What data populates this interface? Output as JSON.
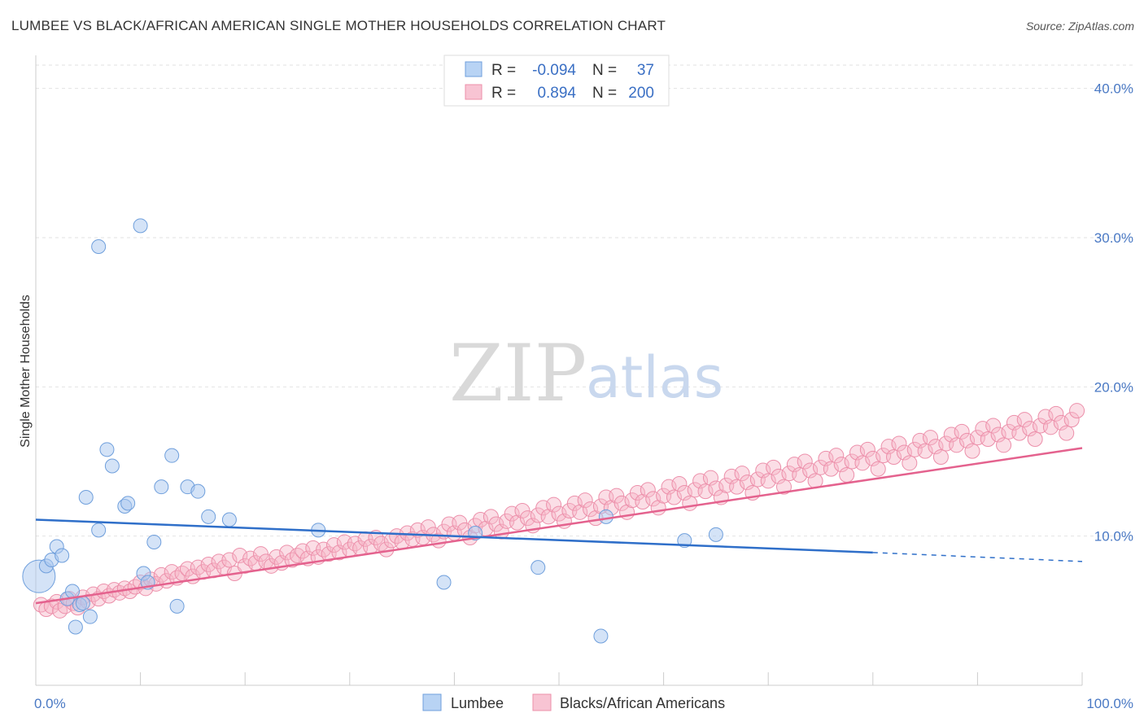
{
  "title": "LUMBEE VS BLACK/AFRICAN AMERICAN SINGLE MOTHER HOUSEHOLDS CORRELATION CHART",
  "source": "Source: ZipAtlas.com",
  "watermark": {
    "zip": "ZIP",
    "atlas": "atlas"
  },
  "chart_data": {
    "type": "scatter",
    "xlabel": "",
    "ylabel": "Single Mother Households",
    "xlim": [
      0,
      100
    ],
    "ylim": [
      0,
      42
    ],
    "x_tick_labels": [
      {
        "value": 0,
        "label": "0.0%"
      },
      {
        "value": 100,
        "label": "100.0%"
      }
    ],
    "y_tick_labels": [
      {
        "value": 10,
        "label": "10.0%"
      },
      {
        "value": 20,
        "label": "20.0%"
      },
      {
        "value": 30,
        "label": "30.0%"
      },
      {
        "value": 40,
        "label": "40.0%"
      }
    ],
    "grid": "horizontal dashed",
    "legend_placement": "top-center",
    "stats": [
      {
        "r_label": "R =",
        "r_value": "-0.094",
        "n_label": "N =",
        "n_value": "37"
      },
      {
        "r_label": "R =",
        "r_value": "0.894",
        "n_label": "N =",
        "n_value": "200"
      }
    ],
    "series": [
      {
        "name": "Lumbee",
        "color": "#a9c8f0",
        "stroke": "#6f9fdc",
        "trend_color": "#2f6fc9",
        "trend": {
          "x0": 0,
          "y0": 11.1,
          "x1": 80,
          "y1": 8.9,
          "dash_to_x": 100,
          "dash_to_y": 8.3
        },
        "points": [
          [
            0.3,
            7.3
          ],
          [
            1.0,
            8.0
          ],
          [
            1.5,
            8.4
          ],
          [
            2.0,
            9.3
          ],
          [
            2.5,
            8.7
          ],
          [
            3.0,
            5.8
          ],
          [
            3.5,
            6.3
          ],
          [
            3.8,
            3.9
          ],
          [
            4.2,
            5.4
          ],
          [
            4.5,
            5.5
          ],
          [
            4.8,
            12.6
          ],
          [
            5.2,
            4.6
          ],
          [
            6.0,
            29.4
          ],
          [
            6.0,
            10.4
          ],
          [
            6.8,
            15.8
          ],
          [
            7.3,
            14.7
          ],
          [
            8.5,
            12.0
          ],
          [
            8.8,
            12.2
          ],
          [
            10.0,
            30.8
          ],
          [
            10.3,
            7.5
          ],
          [
            10.7,
            6.9
          ],
          [
            11.3,
            9.6
          ],
          [
            12.0,
            13.3
          ],
          [
            13.0,
            15.4
          ],
          [
            13.5,
            5.3
          ],
          [
            14.5,
            13.3
          ],
          [
            15.5,
            13.0
          ],
          [
            16.5,
            11.3
          ],
          [
            18.5,
            11.1
          ],
          [
            27.0,
            10.4
          ],
          [
            39.0,
            6.9
          ],
          [
            42.0,
            10.2
          ],
          [
            48.0,
            7.9
          ],
          [
            54.0,
            3.3
          ],
          [
            54.5,
            11.3
          ],
          [
            62.0,
            9.7
          ],
          [
            65.0,
            10.1
          ]
        ],
        "big_point": [
          0.3,
          7.3
        ]
      },
      {
        "name": "Blacks/African Americans",
        "color": "#f6b6c8",
        "stroke": "#ec8faa",
        "trend_color": "#e4628e",
        "trend": {
          "x0": 0,
          "y0": 5.5,
          "x1": 100,
          "y1": 15.9
        },
        "points": [
          [
            0.5,
            5.4
          ],
          [
            1.0,
            5.1
          ],
          [
            1.5,
            5.3
          ],
          [
            2.0,
            5.6
          ],
          [
            2.3,
            5.0
          ],
          [
            2.8,
            5.3
          ],
          [
            3.2,
            5.8
          ],
          [
            3.6,
            5.5
          ],
          [
            4.0,
            5.2
          ],
          [
            4.5,
            5.9
          ],
          [
            5.0,
            5.6
          ],
          [
            5.5,
            6.1
          ],
          [
            6.0,
            5.8
          ],
          [
            6.5,
            6.3
          ],
          [
            7.0,
            6.0
          ],
          [
            7.5,
            6.4
          ],
          [
            8.0,
            6.2
          ],
          [
            8.5,
            6.5
          ],
          [
            9.0,
            6.3
          ],
          [
            9.5,
            6.6
          ],
          [
            10.0,
            6.9
          ],
          [
            10.5,
            6.5
          ],
          [
            11.0,
            7.1
          ],
          [
            11.5,
            6.8
          ],
          [
            12.0,
            7.4
          ],
          [
            12.5,
            7.0
          ],
          [
            13.0,
            7.6
          ],
          [
            13.5,
            7.2
          ],
          [
            14.0,
            7.5
          ],
          [
            14.5,
            7.8
          ],
          [
            15.0,
            7.3
          ],
          [
            15.5,
            7.9
          ],
          [
            16.0,
            7.6
          ],
          [
            16.5,
            8.1
          ],
          [
            17.0,
            7.7
          ],
          [
            17.5,
            8.3
          ],
          [
            18.0,
            7.9
          ],
          [
            18.5,
            8.4
          ],
          [
            19.0,
            7.5
          ],
          [
            19.5,
            8.7
          ],
          [
            20.0,
            8.0
          ],
          [
            20.5,
            8.5
          ],
          [
            21.0,
            8.2
          ],
          [
            21.5,
            8.8
          ],
          [
            22.0,
            8.3
          ],
          [
            22.5,
            8.0
          ],
          [
            23.0,
            8.6
          ],
          [
            23.5,
            8.2
          ],
          [
            24.0,
            8.9
          ],
          [
            24.5,
            8.4
          ],
          [
            25.0,
            8.7
          ],
          [
            25.5,
            9.0
          ],
          [
            26.0,
            8.5
          ],
          [
            26.5,
            9.2
          ],
          [
            27.0,
            8.6
          ],
          [
            27.5,
            9.1
          ],
          [
            28.0,
            8.8
          ],
          [
            28.5,
            9.4
          ],
          [
            29.0,
            8.9
          ],
          [
            29.5,
            9.6
          ],
          [
            30.0,
            9.1
          ],
          [
            30.5,
            9.5
          ],
          [
            31.0,
            9.2
          ],
          [
            31.5,
            9.8
          ],
          [
            32.0,
            9.3
          ],
          [
            32.5,
            9.9
          ],
          [
            33.0,
            9.5
          ],
          [
            33.5,
            9.1
          ],
          [
            34.0,
            9.7
          ],
          [
            34.5,
            10.0
          ],
          [
            35.0,
            9.6
          ],
          [
            35.5,
            10.2
          ],
          [
            36.0,
            9.8
          ],
          [
            36.5,
            10.4
          ],
          [
            37.0,
            9.9
          ],
          [
            37.5,
            10.6
          ],
          [
            38.0,
            10.1
          ],
          [
            38.5,
            9.7
          ],
          [
            39.0,
            10.3
          ],
          [
            39.5,
            10.8
          ],
          [
            40.0,
            10.2
          ],
          [
            40.5,
            10.9
          ],
          [
            41.0,
            10.4
          ],
          [
            41.5,
            9.9
          ],
          [
            42.0,
            10.7
          ],
          [
            42.5,
            11.1
          ],
          [
            43.0,
            10.5
          ],
          [
            43.5,
            11.3
          ],
          [
            44.0,
            10.8
          ],
          [
            44.5,
            10.3
          ],
          [
            45.0,
            11.0
          ],
          [
            45.5,
            11.5
          ],
          [
            46.0,
            10.9
          ],
          [
            46.5,
            11.7
          ],
          [
            47.0,
            11.2
          ],
          [
            47.5,
            10.7
          ],
          [
            48.0,
            11.4
          ],
          [
            48.5,
            11.9
          ],
          [
            49.0,
            11.3
          ],
          [
            49.5,
            12.1
          ],
          [
            50.0,
            11.5
          ],
          [
            50.5,
            11.0
          ],
          [
            51.0,
            11.7
          ],
          [
            51.5,
            12.2
          ],
          [
            52.0,
            11.6
          ],
          [
            52.5,
            12.4
          ],
          [
            53.0,
            11.8
          ],
          [
            53.5,
            11.2
          ],
          [
            54.0,
            12.0
          ],
          [
            54.5,
            12.6
          ],
          [
            55.0,
            11.9
          ],
          [
            55.5,
            12.7
          ],
          [
            56.0,
            12.2
          ],
          [
            56.5,
            11.6
          ],
          [
            57.0,
            12.4
          ],
          [
            57.5,
            12.9
          ],
          [
            58.0,
            12.3
          ],
          [
            58.5,
            13.1
          ],
          [
            59.0,
            12.5
          ],
          [
            59.5,
            11.9
          ],
          [
            60.0,
            12.7
          ],
          [
            60.5,
            13.3
          ],
          [
            61.0,
            12.6
          ],
          [
            61.5,
            13.5
          ],
          [
            62.0,
            12.9
          ],
          [
            62.5,
            12.2
          ],
          [
            63.0,
            13.1
          ],
          [
            63.5,
            13.7
          ],
          [
            64.0,
            13.0
          ],
          [
            64.5,
            13.9
          ],
          [
            65.0,
            13.2
          ],
          [
            65.5,
            12.6
          ],
          [
            66.0,
            13.4
          ],
          [
            66.5,
            14.0
          ],
          [
            67.0,
            13.3
          ],
          [
            67.5,
            14.2
          ],
          [
            68.0,
            13.6
          ],
          [
            68.5,
            12.9
          ],
          [
            69.0,
            13.8
          ],
          [
            69.5,
            14.4
          ],
          [
            70.0,
            13.7
          ],
          [
            70.5,
            14.6
          ],
          [
            71.0,
            14.0
          ],
          [
            71.5,
            13.3
          ],
          [
            72.0,
            14.2
          ],
          [
            72.5,
            14.8
          ],
          [
            73.0,
            14.1
          ],
          [
            73.5,
            15.0
          ],
          [
            74.0,
            14.4
          ],
          [
            74.5,
            13.7
          ],
          [
            75.0,
            14.6
          ],
          [
            75.5,
            15.2
          ],
          [
            76.0,
            14.5
          ],
          [
            76.5,
            15.4
          ],
          [
            77.0,
            14.8
          ],
          [
            77.5,
            14.1
          ],
          [
            78.0,
            15.0
          ],
          [
            78.5,
            15.6
          ],
          [
            79.0,
            14.9
          ],
          [
            79.5,
            15.8
          ],
          [
            80.0,
            15.2
          ],
          [
            80.5,
            14.5
          ],
          [
            81.0,
            15.4
          ],
          [
            81.5,
            16.0
          ],
          [
            82.0,
            15.3
          ],
          [
            82.5,
            16.2
          ],
          [
            83.0,
            15.6
          ],
          [
            83.5,
            14.9
          ],
          [
            84.0,
            15.8
          ],
          [
            84.5,
            16.4
          ],
          [
            85.0,
            15.7
          ],
          [
            85.5,
            16.6
          ],
          [
            86.0,
            16.0
          ],
          [
            86.5,
            15.3
          ],
          [
            87.0,
            16.2
          ],
          [
            87.5,
            16.8
          ],
          [
            88.0,
            16.1
          ],
          [
            88.5,
            17.0
          ],
          [
            89.0,
            16.4
          ],
          [
            89.5,
            15.7
          ],
          [
            90.0,
            16.6
          ],
          [
            90.5,
            17.2
          ],
          [
            91.0,
            16.5
          ],
          [
            91.5,
            17.4
          ],
          [
            92.0,
            16.8
          ],
          [
            92.5,
            16.1
          ],
          [
            93.0,
            17.0
          ],
          [
            93.5,
            17.6
          ],
          [
            94.0,
            16.9
          ],
          [
            94.5,
            17.8
          ],
          [
            95.0,
            17.2
          ],
          [
            95.5,
            16.5
          ],
          [
            96.0,
            17.4
          ],
          [
            96.5,
            18.0
          ],
          [
            97.0,
            17.3
          ],
          [
            97.5,
            18.2
          ],
          [
            98.0,
            17.6
          ],
          [
            98.5,
            16.9
          ],
          [
            99.0,
            17.8
          ],
          [
            99.5,
            18.4
          ]
        ]
      }
    ]
  },
  "legend_bottom": [
    {
      "label": "Lumbee"
    },
    {
      "label": "Blacks/African Americans"
    }
  ]
}
